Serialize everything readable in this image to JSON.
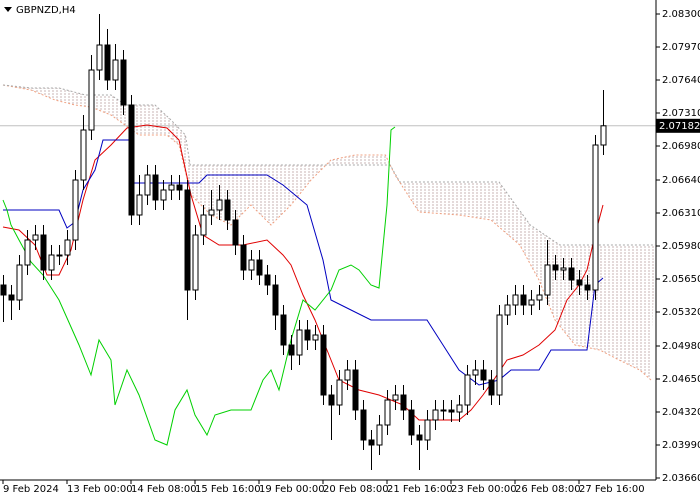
{
  "chart_data": {
    "type": "candlestick",
    "title": "GBPNZD,H4",
    "up_color": "#ffffff",
    "down_color": "#000000",
    "categories": [
      "9 Feb 2024",
      null,
      null,
      null,
      null,
      null,
      null,
      null,
      "13 Feb 00:00",
      null,
      null,
      null,
      null,
      null,
      null,
      null,
      "14 Feb 08:00",
      null,
      null,
      null,
      null,
      null,
      null,
      null,
      "15 Feb 16:00",
      null,
      null,
      null,
      null,
      null,
      null,
      null,
      "19 Feb 00:00",
      null,
      null,
      null,
      null,
      null,
      null,
      null,
      "20 Feb 08:00",
      null,
      null,
      null,
      null,
      null,
      null,
      null,
      "21 Feb 16:00",
      null,
      null,
      null,
      null,
      null,
      null,
      null,
      "23 Feb 00:00",
      null,
      null,
      null,
      null,
      null,
      null,
      null,
      "26 Feb 08:00",
      null,
      null,
      null,
      null,
      null,
      null,
      null,
      "27 Feb 16:00",
      null,
      null,
      null
    ],
    "open": [
      2.0559,
      2.0549,
      2.0544,
      2.0579,
      2.0604,
      2.0609,
      2.0574,
      2.0589,
      2.0589,
      2.0604,
      2.0664,
      2.0714,
      2.0774,
      2.0799,
      2.0764,
      2.0784,
      2.0739,
      2.0629,
      2.0649,
      2.0669,
      2.0644,
      2.0654,
      2.0659,
      2.0654,
      2.0554,
      2.0609,
      2.0629,
      2.0634,
      2.0644,
      2.0624,
      2.0599,
      2.0574,
      2.0584,
      2.0569,
      2.0559,
      2.0529,
      2.0499,
      2.0489,
      2.0514,
      2.0504,
      2.0509,
      2.0449,
      2.0439,
      2.0464,
      2.0474,
      2.0434,
      2.0404,
      2.0399,
      2.0419,
      2.0444,
      2.0449,
      2.0434,
      2.0409,
      2.0404,
      2.0424,
      2.0434,
      2.0434,
      2.0432,
      2.0439,
      2.0469,
      2.0474,
      2.0464,
      2.0449,
      2.0529,
      2.0539,
      2.0549,
      2.0539,
      2.0544,
      2.0549,
      2.0579,
      2.0574,
      2.0576,
      2.0564,
      2.0559,
      2.0554,
      2.0699
    ],
    "high": [
      2.0569,
      2.0559,
      2.0589,
      2.0614,
      2.0619,
      2.0619,
      2.0599,
      2.0599,
      2.0614,
      2.0674,
      2.0729,
      2.0789,
      2.083,
      2.0815,
      2.08,
      2.0794,
      2.0749,
      2.0669,
      2.0679,
      2.0679,
      2.0664,
      2.0669,
      2.0669,
      2.0664,
      2.0619,
      2.0639,
      2.0654,
      2.0659,
      2.0654,
      2.0634,
      2.0609,
      2.0594,
      2.0594,
      2.0579,
      2.0569,
      2.0539,
      2.0509,
      2.0524,
      2.0524,
      2.0519,
      2.0519,
      2.0459,
      2.0474,
      2.0484,
      2.0484,
      2.0444,
      2.0414,
      2.0429,
      2.0454,
      2.0459,
      2.0459,
      2.0444,
      2.0419,
      2.0434,
      2.0444,
      2.0444,
      2.0444,
      2.0449,
      2.0479,
      2.0484,
      2.0484,
      2.0474,
      2.0539,
      2.0549,
      2.0559,
      2.0559,
      2.0554,
      2.0559,
      2.0604,
      2.0589,
      2.0586,
      2.0586,
      2.0574,
      2.0569,
      2.0709,
      2.0754
    ],
    "low": [
      2.0522,
      2.0524,
      2.0534,
      2.0569,
      2.0594,
      2.0564,
      2.0564,
      2.0579,
      2.0579,
      2.0594,
      2.0654,
      2.0704,
      2.0764,
      2.0754,
      2.0754,
      2.0729,
      2.0619,
      2.0619,
      2.0639,
      2.0634,
      2.0634,
      2.0644,
      2.0644,
      2.0524,
      2.0544,
      2.0599,
      2.0619,
      2.0624,
      2.0614,
      2.0589,
      2.0564,
      2.0564,
      2.0559,
      2.0549,
      2.0514,
      2.0489,
      2.0474,
      2.0479,
      2.0494,
      2.0494,
      2.0439,
      2.0404,
      2.0429,
      2.0454,
      2.0424,
      2.0394,
      2.0374,
      2.0389,
      2.0409,
      2.0434,
      2.0424,
      2.0399,
      2.0374,
      2.0394,
      2.0414,
      2.0424,
      2.0422,
      2.0422,
      2.0429,
      2.0459,
      2.0454,
      2.0439,
      2.0439,
      2.0519,
      2.0529,
      2.0529,
      2.0529,
      2.0534,
      2.0539,
      2.0564,
      2.0564,
      2.0554,
      2.0549,
      2.0544,
      2.0544,
      2.0689
    ],
    "close": [
      2.0549,
      2.0544,
      2.0579,
      2.0604,
      2.0609,
      2.0574,
      2.0589,
      2.0589,
      2.0604,
      2.0664,
      2.0714,
      2.0774,
      2.0799,
      2.0764,
      2.0784,
      2.0739,
      2.0629,
      2.0649,
      2.0669,
      2.0644,
      2.0654,
      2.0659,
      2.0654,
      2.0554,
      2.0609,
      2.0629,
      2.0634,
      2.0644,
      2.0624,
      2.0599,
      2.0574,
      2.0584,
      2.0569,
      2.0559,
      2.0529,
      2.0499,
      2.0489,
      2.0514,
      2.0504,
      2.0509,
      2.0449,
      2.0439,
      2.0464,
      2.0474,
      2.0434,
      2.0404,
      2.0399,
      2.0419,
      2.0444,
      2.0449,
      2.0434,
      2.0409,
      2.0404,
      2.0424,
      2.0434,
      2.0434,
      2.0432,
      2.0439,
      2.0469,
      2.0474,
      2.0464,
      2.0449,
      2.0529,
      2.0539,
      2.0549,
      2.0539,
      2.0544,
      2.0549,
      2.0579,
      2.0574,
      2.0576,
      2.0564,
      2.0559,
      2.0554,
      2.0699,
      2.07182
    ],
    "last_price": 2.07182,
    "ylim": [
      2.0364,
      2.0844
    ],
    "yticks": [
      {
        "value": 2.083,
        "label": "2.08300"
      },
      {
        "value": 2.0797,
        "label": "2.07970"
      },
      {
        "value": 2.0764,
        "label": "2.07640"
      },
      {
        "value": 2.0731,
        "label": "2.07310"
      },
      {
        "value": 2.0698,
        "label": "2.06980"
      },
      {
        "value": 2.0664,
        "label": "2.06640"
      },
      {
        "value": 2.0631,
        "label": "2.06310"
      },
      {
        "value": 2.0598,
        "label": "2.05980"
      },
      {
        "value": 2.0565,
        "label": "2.05650"
      },
      {
        "value": 2.0532,
        "label": "2.05320"
      },
      {
        "value": 2.0498,
        "label": "2.04980"
      },
      {
        "value": 2.0465,
        "label": "2.04650"
      },
      {
        "value": 2.0432,
        "label": "2.04320"
      },
      {
        "value": 2.0399,
        "label": "2.03990"
      },
      {
        "value": 2.0366,
        "label": "2.03660"
      }
    ],
    "cloud": {
      "fill": "#c8b4b4",
      "span_a": {
        "color": "#f0a080",
        "x": [
          0,
          3.5,
          6.5,
          9,
          11,
          13.5,
          17,
          20.5,
          22,
          23.5,
          26,
          28.5,
          31,
          33.5,
          36,
          38.5,
          41,
          44,
          47.8,
          49,
          52,
          57,
          61,
          64.6,
          67,
          69,
          71.5,
          74.6,
          77,
          79.6,
          81
        ],
        "values": [
          2.0759,
          2.0754,
          2.0744,
          2.0739,
          2.0737,
          2.0729,
          2.0709,
          2.0709,
          2.0699,
          2.0649,
          2.0629,
          2.0619,
          2.0639,
          2.0619,
          2.0639,
          2.0664,
          2.0684,
          2.0689,
          2.0689,
          2.0669,
          2.0632,
          2.0629,
          2.0624,
          2.0599,
          2.0564,
          2.0524,
          2.0499,
          2.0494,
          2.0484,
          2.0474,
          2.0464
        ]
      },
      "span_b": {
        "color": "#a8a8a8",
        "x": [
          0,
          3.5,
          7,
          10.3,
          13.5,
          15.3,
          19,
          21,
          22.8,
          23.4,
          28.4,
          37,
          48.4,
          49.6,
          62,
          65.9,
          69.6,
          81.5
        ],
        "values": [
          2.0759,
          2.0756,
          2.0756,
          2.0749,
          2.0749,
          2.0739,
          2.0739,
          2.0724,
          2.0709,
          2.0679,
          2.0679,
          2.0679,
          2.0679,
          2.0662,
          2.0662,
          2.0619,
          2.0599,
          2.0599
        ]
      }
    },
    "lines": [
      {
        "color": "#e00000",
        "x": [
          0,
          2,
          4,
          5.5,
          7,
          8.5,
          10,
          11.5,
          13.5,
          15.5,
          18,
          20.5,
          22,
          23.5,
          25,
          27,
          30,
          33,
          35,
          36,
          37.5,
          39,
          40.5,
          42,
          44.5,
          47,
          50,
          52,
          55,
          57,
          58.5,
          60,
          61.5,
          63,
          65,
          67,
          69,
          70.5,
          72,
          73,
          74,
          75
        ],
        "values": [
          2.0617,
          2.0614,
          2.0599,
          2.0569,
          2.0569,
          2.0594,
          2.0644,
          2.0684,
          2.0699,
          2.0716,
          2.0719,
          2.0716,
          2.0704,
          2.0649,
          2.0609,
          2.0599,
          2.0599,
          2.0604,
          2.0589,
          2.0579,
          2.0549,
          2.0524,
          2.0494,
          2.0464,
          2.0454,
          2.0449,
          2.0439,
          2.0424,
          2.0424,
          2.0424,
          2.0434,
          2.0449,
          2.0466,
          2.0484,
          2.0489,
          2.0499,
          2.0514,
          2.0544,
          2.0559,
          2.0574,
          2.0609,
          2.0639
        ]
      },
      {
        "color": "#0000c0",
        "x": [
          0,
          7,
          8,
          9,
          10,
          11.5,
          12.5,
          16,
          16.2,
          22,
          24.5,
          25.5,
          33,
          35,
          38,
          40,
          41,
          43.5,
          46,
          53,
          55,
          57,
          59.5,
          62,
          63.5,
          67,
          68.5,
          73,
          74,
          75
        ],
        "values": [
          2.0634,
          2.0634,
          2.0616,
          2.0622,
          2.0654,
          2.0674,
          2.0704,
          2.0704,
          2.0661,
          2.0661,
          2.0661,
          2.0669,
          2.0669,
          2.0659,
          2.0639,
          2.0584,
          2.0544,
          2.0534,
          2.0524,
          2.0524,
          2.0499,
          2.0474,
          2.0459,
          2.0464,
          2.0474,
          2.0474,
          2.0494,
          2.0494,
          2.0559,
          2.0566
        ]
      },
      {
        "color": "#00d000",
        "x": [
          0,
          0.5,
          1,
          2,
          3.5,
          5,
          7,
          9.5,
          11,
          12,
          13.5,
          14,
          15.5,
          17,
          19,
          20.5,
          21.5,
          23,
          24,
          25.5,
          26.5,
          28.5,
          31,
          32.5,
          33.5,
          34.5,
          36,
          37.5,
          39,
          41,
          42,
          43.5,
          44.5,
          46,
          47,
          48,
          48.5,
          49
        ],
        "values": [
          2.0644,
          2.0634,
          2.0619,
          2.0604,
          2.0582,
          2.0569,
          2.0544,
          2.0499,
          2.0469,
          2.0504,
          2.0484,
          2.0439,
          2.0474,
          2.0449,
          2.0404,
          2.0399,
          2.0434,
          2.0454,
          2.0429,
          2.0409,
          2.0429,
          2.0434,
          2.0434,
          2.0464,
          2.0474,
          2.0454,
          2.0504,
          2.0544,
          2.0534,
          2.0554,
          2.0574,
          2.0579,
          2.0574,
          2.0559,
          2.0556,
          2.0639,
          2.0714,
          2.0717
        ]
      }
    ]
  }
}
